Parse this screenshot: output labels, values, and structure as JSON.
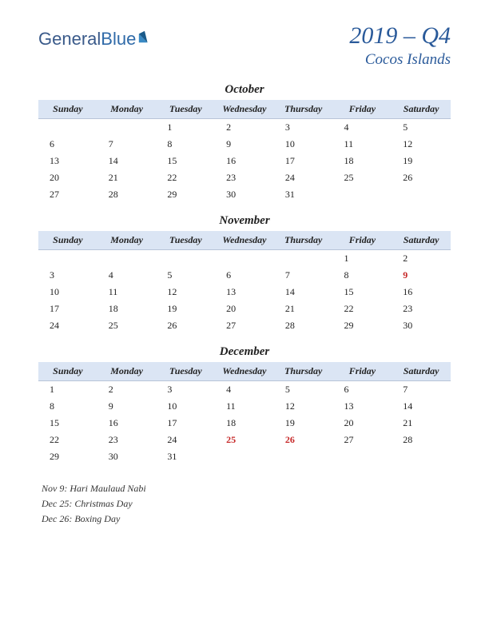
{
  "logo": {
    "part1": "General",
    "part2": "Blue"
  },
  "header": {
    "period": "2019 – Q4",
    "location": "Cocos Islands"
  },
  "day_headers": [
    "Sunday",
    "Monday",
    "Tuesday",
    "Wednesday",
    "Thursday",
    "Friday",
    "Saturday"
  ],
  "styling": {
    "page_bg": "#ffffff",
    "header_color": "#2a5a9a",
    "th_bg": "#dbe5f4",
    "holiday_color": "#c62828",
    "text_color": "#222222",
    "title_fontsize": 30,
    "location_fontsize": 19,
    "month_title_fontsize": 15,
    "th_fontsize": 12,
    "td_fontsize": 12
  },
  "months": [
    {
      "name": "October",
      "weeks": [
        [
          "",
          "",
          "1",
          "2",
          "3",
          "4",
          "5"
        ],
        [
          "6",
          "7",
          "8",
          "9",
          "10",
          "11",
          "12"
        ],
        [
          "13",
          "14",
          "15",
          "16",
          "17",
          "18",
          "19"
        ],
        [
          "20",
          "21",
          "22",
          "23",
          "24",
          "25",
          "26"
        ],
        [
          "27",
          "28",
          "29",
          "30",
          "31",
          "",
          ""
        ]
      ],
      "holidays": []
    },
    {
      "name": "November",
      "weeks": [
        [
          "",
          "",
          "",
          "",
          "",
          "1",
          "2"
        ],
        [
          "3",
          "4",
          "5",
          "6",
          "7",
          "8",
          "9"
        ],
        [
          "10",
          "11",
          "12",
          "13",
          "14",
          "15",
          "16"
        ],
        [
          "17",
          "18",
          "19",
          "20",
          "21",
          "22",
          "23"
        ],
        [
          "24",
          "25",
          "26",
          "27",
          "28",
          "29",
          "30"
        ]
      ],
      "holidays": [
        "9"
      ]
    },
    {
      "name": "December",
      "weeks": [
        [
          "1",
          "2",
          "3",
          "4",
          "5",
          "6",
          "7"
        ],
        [
          "8",
          "9",
          "10",
          "11",
          "12",
          "13",
          "14"
        ],
        [
          "15",
          "16",
          "17",
          "18",
          "19",
          "20",
          "21"
        ],
        [
          "22",
          "23",
          "24",
          "25",
          "26",
          "27",
          "28"
        ],
        [
          "29",
          "30",
          "31",
          "",
          "",
          "",
          ""
        ]
      ],
      "holidays": [
        "25",
        "26"
      ]
    }
  ],
  "holiday_list": [
    "Nov 9: Hari Maulaud Nabi",
    "Dec 25: Christmas Day",
    "Dec 26: Boxing Day"
  ]
}
